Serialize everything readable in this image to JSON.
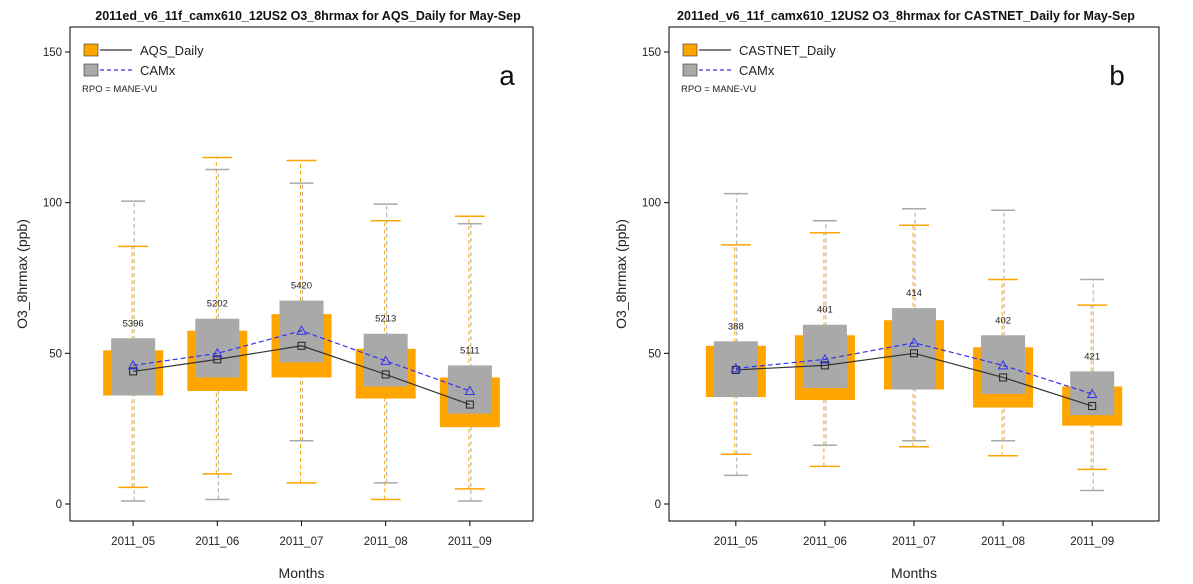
{
  "colors": {
    "obs": "#FFA500",
    "model": "#A9A9A9",
    "obs_line": "#333333",
    "model_line": "#3333EE"
  },
  "chart_data": [
    {
      "type": "boxplot",
      "title": "2011ed_v6_11f_camx610_12US2 O3_8hrmax for AQS_Daily for May-Sep",
      "panel_tag": "a",
      "xlabel": "Months",
      "ylabel": "O3_8hrmax (ppb)",
      "ylim": [
        0,
        150
      ],
      "yticks": [
        0,
        50,
        100,
        150
      ],
      "categories": [
        "2011_05",
        "2011_06",
        "2011_07",
        "2011_08",
        "2011_09"
      ],
      "counts": [
        "5396",
        "5202",
        "5420",
        "5213",
        "5111"
      ],
      "legend": [
        {
          "label": "AQS_Daily",
          "style": "orange box, solid black line, square marker"
        },
        {
          "label": "CAMx",
          "style": "gray box, dashed blue line, triangle marker"
        }
      ],
      "note": "RPO = MANE-VU",
      "series": [
        {
          "name": "AQS_Daily",
          "q1": [
            36,
            37.5,
            42,
            35,
            25.5
          ],
          "q3": [
            51,
            57.5,
            63,
            51.5,
            42
          ],
          "whisker_low": [
            5.5,
            10,
            7,
            1.5,
            5
          ],
          "whisker_high": [
            85.5,
            115,
            114,
            94,
            95.5
          ],
          "mean": [
            44,
            48,
            52.5,
            43,
            33
          ]
        },
        {
          "name": "CAMx",
          "q1": [
            36,
            42,
            47,
            39,
            30
          ],
          "q3": [
            55,
            61.5,
            67.5,
            56.5,
            46
          ],
          "whisker_low": [
            1,
            1.5,
            21,
            7,
            1
          ],
          "whisker_high": [
            100.5,
            111,
            106.5,
            99.5,
            93
          ],
          "mean": [
            46,
            50,
            57.5,
            47.5,
            37.5
          ]
        }
      ],
      "grid": false,
      "legend_position": "top-left"
    },
    {
      "type": "boxplot",
      "title": "2011ed_v6_11f_camx610_12US2 O3_8hrmax for CASTNET_Daily for May-Sep",
      "panel_tag": "b",
      "xlabel": "Months",
      "ylabel": "O3_8hrmax (ppb)",
      "ylim": [
        0,
        150
      ],
      "yticks": [
        0,
        50,
        100,
        150
      ],
      "categories": [
        "2011_05",
        "2011_06",
        "2011_07",
        "2011_08",
        "2011_09"
      ],
      "counts": [
        "388",
        "401",
        "414",
        "402",
        "421"
      ],
      "legend": [
        {
          "label": "CASTNET_Daily",
          "style": "orange box, solid black line, square marker"
        },
        {
          "label": "CAMx",
          "style": "gray box, dashed blue line, triangle marker"
        }
      ],
      "note": "RPO = MANE-VU",
      "series": [
        {
          "name": "CASTNET_Daily",
          "q1": [
            35.5,
            34.5,
            38,
            32,
            26
          ],
          "q3": [
            52.5,
            56,
            61,
            52,
            39
          ],
          "whisker_low": [
            16.5,
            12.5,
            19,
            16,
            11.5
          ],
          "whisker_high": [
            86,
            90,
            92.5,
            74.5,
            66
          ],
          "mean": [
            44.5,
            46,
            50,
            42,
            32.5
          ]
        },
        {
          "name": "CAMx",
          "q1": [
            35.5,
            38.5,
            38,
            36.5,
            29.5
          ],
          "q3": [
            54,
            59.5,
            65,
            56,
            44
          ],
          "whisker_low": [
            9.5,
            19.5,
            21,
            21,
            4.5
          ],
          "whisker_high": [
            103,
            94,
            98,
            97.5,
            74.5
          ],
          "mean": [
            45,
            48,
            53.5,
            46,
            36.5
          ]
        }
      ],
      "grid": false,
      "legend_position": "top-left"
    }
  ]
}
